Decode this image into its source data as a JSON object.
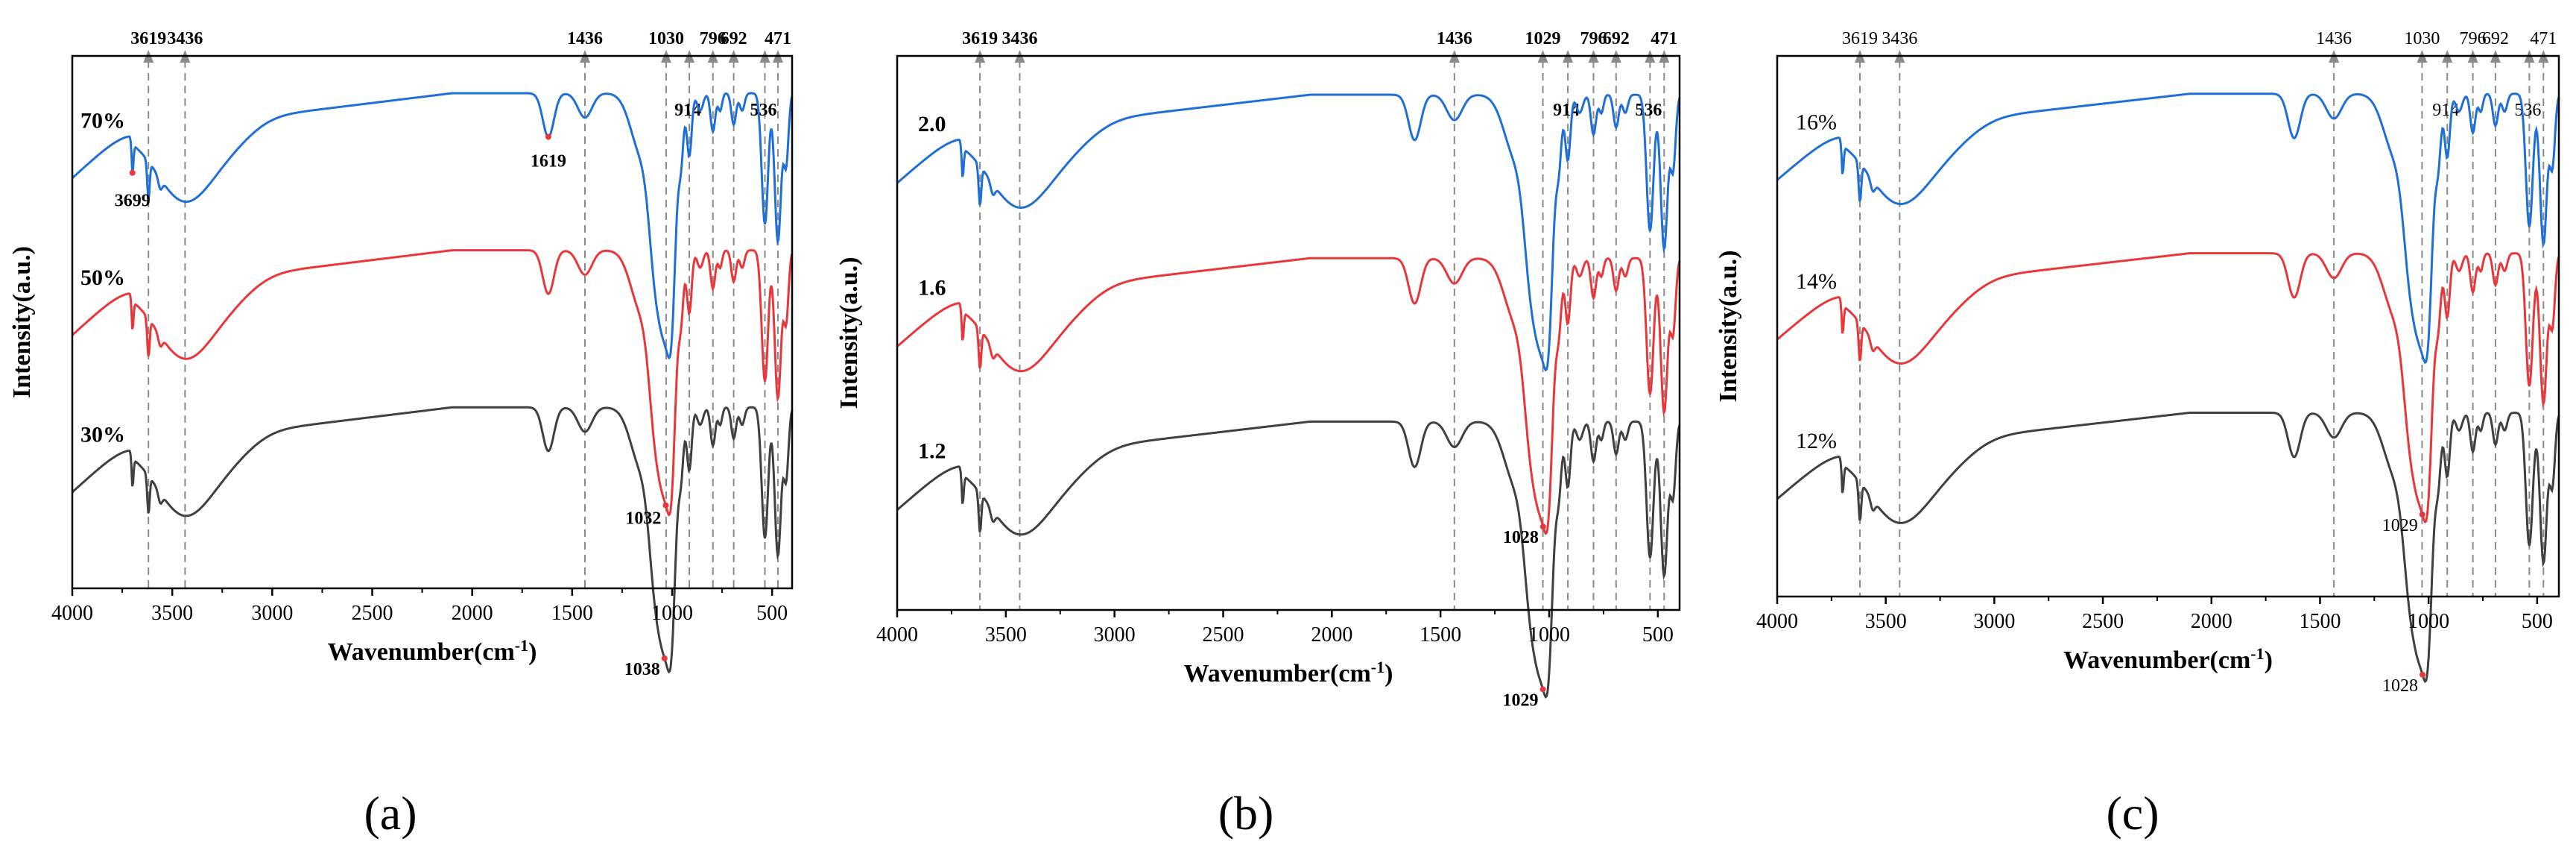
{
  "chart_data": [
    {
      "type": "line",
      "panel_label": "(a)",
      "xlabel": "Wavenumber(cm",
      "xlabel_sup": "-1",
      "xlabel_tail": ")",
      "ylabel": "Intensity(a.u.)",
      "xlim": [
        4000,
        400
      ],
      "x_reversed": true,
      "xticks": [
        "4000",
        "3500",
        "3000",
        "2500",
        "2000",
        "1500",
        "1000",
        "500"
      ],
      "series": [
        {
          "name": "70%",
          "color": "#1f6fd6",
          "offset": 2.0
        },
        {
          "name": "50%",
          "color": "#e8373b",
          "offset": 1.0
        },
        {
          "name": "30%",
          "color": "#404040",
          "offset": 0.0
        }
      ],
      "reference_lines": [
        {
          "x": 3619,
          "label": "3619"
        },
        {
          "x": 3436,
          "label": "3436"
        },
        {
          "x": 1436,
          "label": "1436"
        },
        {
          "x": 1030,
          "label": "1030"
        },
        {
          "x": 914,
          "label": "914"
        },
        {
          "x": 796,
          "label": "796"
        },
        {
          "x": 692,
          "label": "692"
        },
        {
          "x": 536,
          "label": "536"
        },
        {
          "x": 471,
          "label": "471"
        }
      ],
      "annotations": [
        {
          "x": 3699,
          "label": "3699"
        },
        {
          "x": 1619,
          "label": "1619"
        },
        {
          "x": 1032,
          "label": "1032"
        },
        {
          "x": 1038,
          "label": "1038"
        }
      ]
    },
    {
      "type": "line",
      "panel_label": "(b)",
      "xlabel": "Wavenumber(cm",
      "xlabel_sup": "-1",
      "xlabel_tail": ")",
      "ylabel": "Intensity(a.u.)",
      "xlim": [
        4000,
        400
      ],
      "x_reversed": true,
      "xticks": [
        "4000",
        "3500",
        "3000",
        "2500",
        "2000",
        "1500",
        "1000",
        "500"
      ],
      "series": [
        {
          "name": "2.0",
          "color": "#1f6fd6",
          "offset": 2.0
        },
        {
          "name": "1.6",
          "color": "#e8373b",
          "offset": 1.0
        },
        {
          "name": "1.2",
          "color": "#404040",
          "offset": 0.0
        }
      ],
      "reference_lines": [
        {
          "x": 3619,
          "label": "3619"
        },
        {
          "x": 3436,
          "label": "3436"
        },
        {
          "x": 1436,
          "label": "1436"
        },
        {
          "x": 1029,
          "label": "1029"
        },
        {
          "x": 914,
          "label": "914"
        },
        {
          "x": 796,
          "label": "796"
        },
        {
          "x": 692,
          "label": "692"
        },
        {
          "x": 536,
          "label": "536"
        },
        {
          "x": 471,
          "label": "471"
        }
      ],
      "annotations": [
        {
          "x": 1028,
          "label": "1028"
        },
        {
          "x": 1029,
          "label": "1029"
        }
      ]
    },
    {
      "type": "line",
      "panel_label": "(c)",
      "xlabel": "Wavenumber(cm",
      "xlabel_sup": "-1",
      "xlabel_tail": ")",
      "ylabel": "Intensity(a.u.)",
      "xlim": [
        4000,
        400
      ],
      "x_reversed": true,
      "xticks": [
        "4000",
        "3500",
        "3000",
        "2500",
        "2000",
        "1500",
        "1000",
        "500"
      ],
      "series": [
        {
          "name": "16%",
          "color": "#1f6fd6",
          "offset": 2.0
        },
        {
          "name": "14%",
          "color": "#e8373b",
          "offset": 1.0
        },
        {
          "name": "12%",
          "color": "#404040",
          "offset": 0.0
        }
      ],
      "reference_lines": [
        {
          "x": 3619,
          "label": "3619"
        },
        {
          "x": 3436,
          "label": "3436"
        },
        {
          "x": 1436,
          "label": "1436"
        },
        {
          "x": 1030,
          "label": "1030"
        },
        {
          "x": 914,
          "label": "914"
        },
        {
          "x": 796,
          "label": "796"
        },
        {
          "x": 692,
          "label": "692"
        },
        {
          "x": 536,
          "label": "536"
        },
        {
          "x": 471,
          "label": "471"
        }
      ],
      "annotations": [
        {
          "x": 1029,
          "label": "1029"
        },
        {
          "x": 1028,
          "label": "1028"
        }
      ]
    }
  ]
}
